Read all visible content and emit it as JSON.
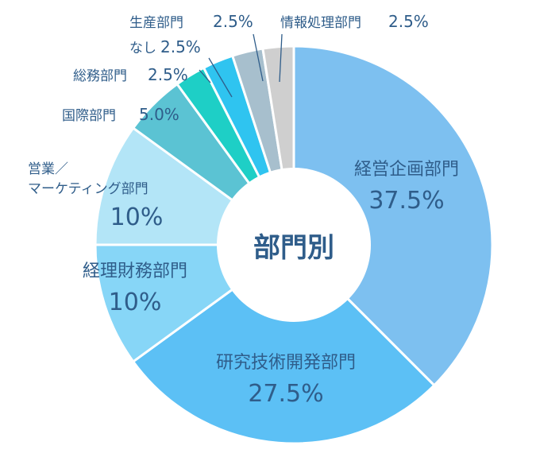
{
  "chart_data": {
    "type": "pie",
    "donut": true,
    "center_label": "部門別",
    "categories": [
      "経営企画部門",
      "研究技術開発部門",
      "経理財務部門",
      "営業／マーケティング部門",
      "国際部門",
      "総務部門",
      "なし",
      "生産部門",
      "情報処理部門"
    ],
    "values": [
      37.5,
      27.5,
      10,
      10,
      5.0,
      2.5,
      2.5,
      2.5,
      2.5
    ],
    "slice_labels": [
      {
        "name_lines": [
          "経営企画部門"
        ],
        "value_text": "37.5%"
      },
      {
        "name_lines": [
          "研究技術開発部門"
        ],
        "value_text": "27.5%"
      },
      {
        "name_lines": [
          "経理財務部門"
        ],
        "value_text": "10%"
      },
      {
        "name_lines": [
          "営業／",
          "マーケティング部門"
        ],
        "value_text": "10%"
      },
      {
        "name_lines": [
          "国際部門"
        ],
        "value_text": "5.0%"
      },
      {
        "name_lines": [
          "総務部門"
        ],
        "value_text": "2.5%"
      },
      {
        "name_lines": [
          "なし"
        ],
        "value_text": "2.5%"
      },
      {
        "name_lines": [
          "生産部門"
        ],
        "value_text": "2.5%"
      },
      {
        "name_lines": [
          "情報処理部門"
        ],
        "value_text": "2.5%"
      }
    ],
    "colors": [
      "#7dc0f0",
      "#5cc0f5",
      "#87d6f7",
      "#b3e5f7",
      "#5bc3d3",
      "#1ecfc6",
      "#2fc4f0",
      "#a7bfcd",
      "#cfcfcf"
    ],
    "direction": "clockwise from top"
  }
}
